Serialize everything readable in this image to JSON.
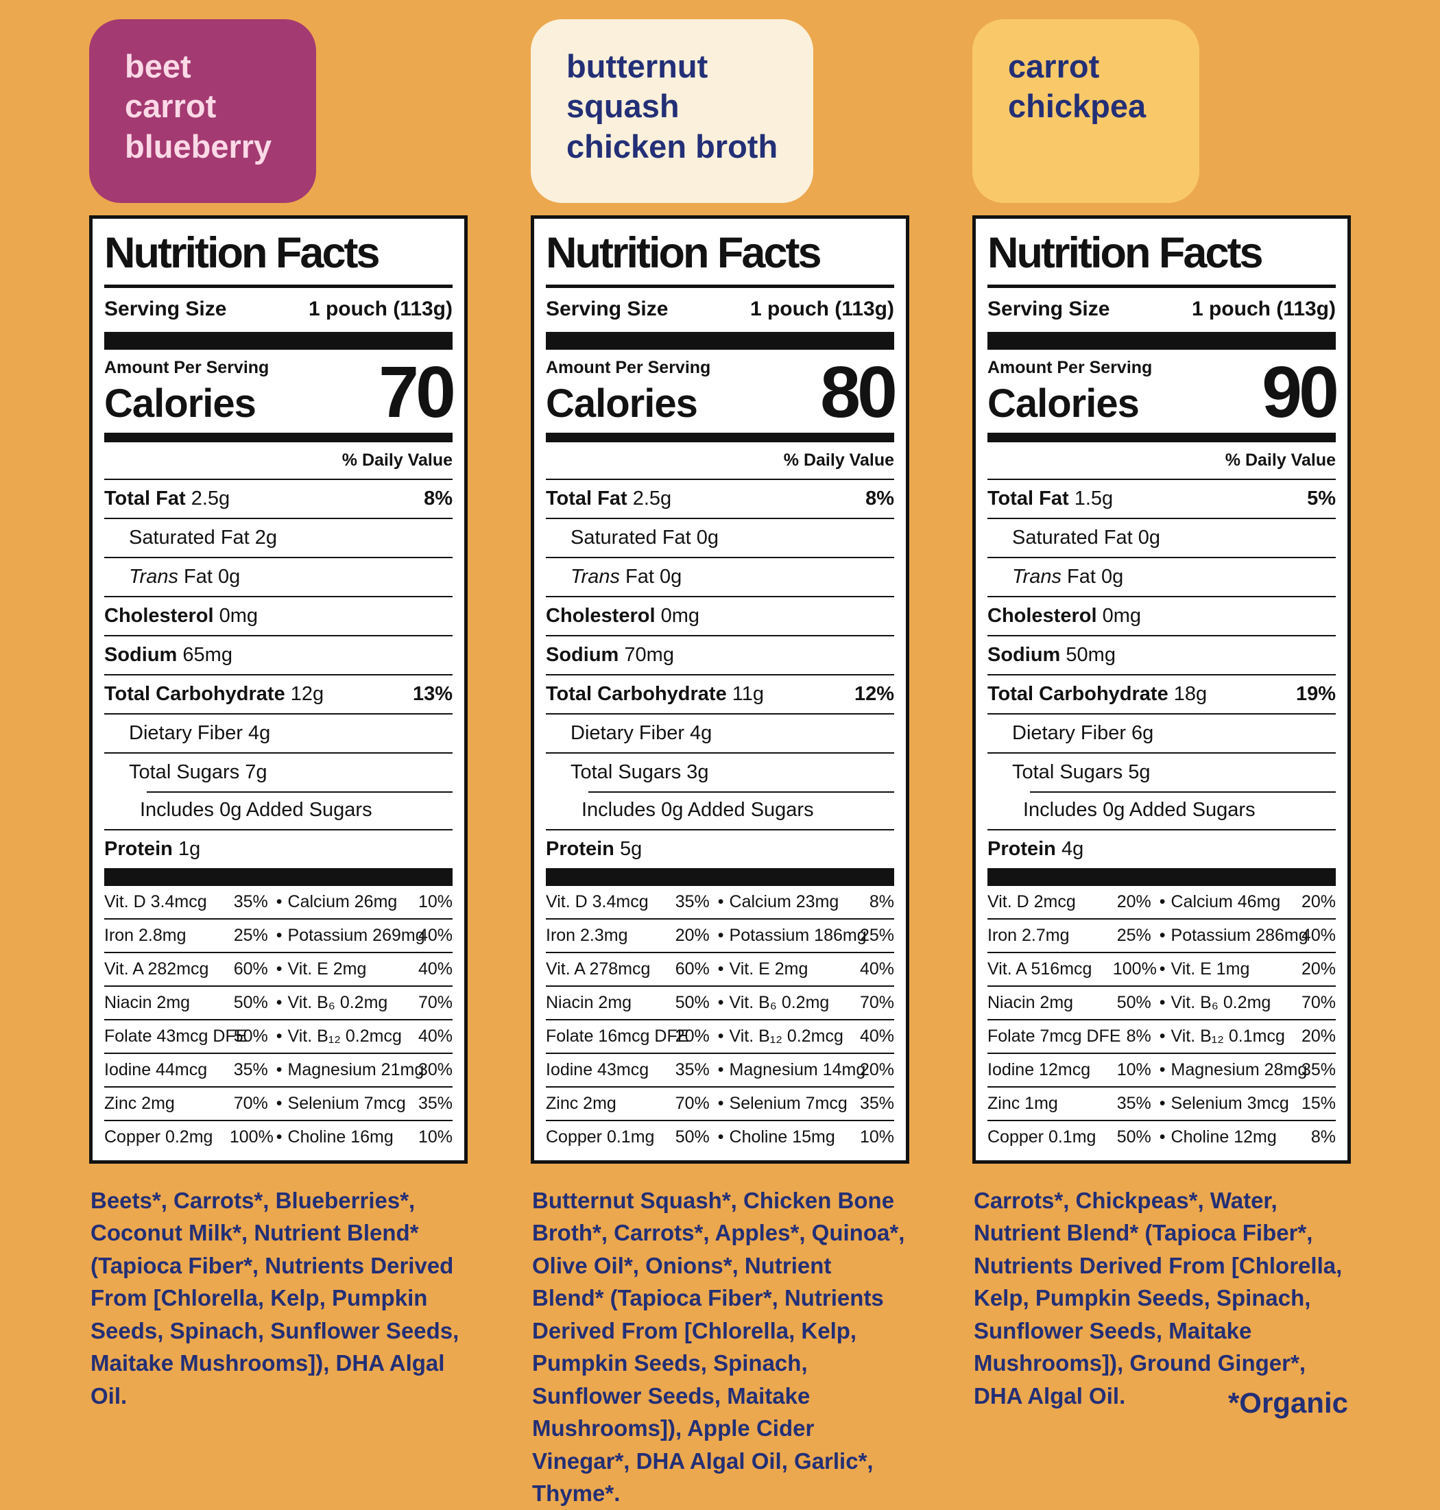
{
  "background_color": "#ECA84E",
  "bullet": "•",
  "footnote": "*Organic",
  "navy": "#232F76",
  "columns": [
    {
      "badge": {
        "lines": [
          "beet",
          "carrot",
          "blueberry"
        ],
        "bg": "#A43A72",
        "text": "#FBD9E7"
      },
      "panel": {
        "title": "Nutrition Facts",
        "serving_size_label": "Serving Size",
        "serving_size_value": "1 pouch (113g)",
        "amount_per_serving": "Amount Per Serving",
        "calories_label": "Calories",
        "calories_value": "70",
        "daily_value_header": "% Daily Value",
        "rows": [
          {
            "i": "",
            "b": "Total Fat",
            "r": " 2.5g",
            "dv": "8%"
          },
          {
            "i": "",
            "b": "",
            "r": "Saturated Fat 2g",
            "dv": ""
          },
          {
            "i": "Trans",
            "b": "",
            "r": " Fat 0g",
            "dv": ""
          },
          {
            "i": "",
            "b": "Cholesterol",
            "r": " 0mg",
            "dv": ""
          },
          {
            "i": "",
            "b": "Sodium",
            "r": " 65mg",
            "dv": ""
          },
          {
            "i": "",
            "b": "Total Carbohydrate",
            "r": " 12g",
            "dv": "13%"
          },
          {
            "i": "",
            "b": "",
            "r": "Dietary Fiber 4g",
            "dv": ""
          },
          {
            "i": "",
            "b": "",
            "r": "Total Sugars 7g",
            "dv": ""
          },
          {
            "i": "",
            "b": "",
            "r": "Includes 0g Added Sugars",
            "dv": ""
          },
          {
            "i": "",
            "b": "Protein",
            "r": " 1g",
            "dv": ""
          }
        ],
        "micronutrients": [
          {
            "l": "Vit. D 3.4mcg",
            "ldv": "35%",
            "r": "Calcium 26mg",
            "rdv": "10%"
          },
          {
            "l": "Iron 2.8mg",
            "ldv": "25%",
            "r": "Potassium 269mg",
            "rdv": "40%"
          },
          {
            "l": "Vit. A 282mcg",
            "ldv": "60%",
            "r": "Vit. E 2mg",
            "rdv": "40%"
          },
          {
            "l": "Niacin 2mg",
            "ldv": "50%",
            "r": "Vit. B₆ 0.2mg",
            "rdv": "70%"
          },
          {
            "l": "Folate 43mcg DFE",
            "ldv": "50%",
            "r": "Vit. B₁₂ 0.2mcg",
            "rdv": "40%"
          },
          {
            "l": "Iodine 44mcg",
            "ldv": "35%",
            "r": "Magnesium 21mg",
            "rdv": "30%"
          },
          {
            "l": "Zinc 2mg",
            "ldv": "70%",
            "r": "Selenium 7mcg",
            "rdv": "35%"
          },
          {
            "l": "Copper 0.2mg",
            "ldv": "100%",
            "r": "Choline 16mg",
            "rdv": "10%"
          }
        ]
      },
      "ingredients": "Beets*, Carrots*, Blueberries*, Coconut Milk*, Nutrient Blend* (Tapioca Fiber*, Nutrients Derived From [Chlorella, Kelp, Pumpkin Seeds, Spinach, Sunflower Seeds, Maitake Mushrooms]), DHA Algal Oil."
    },
    {
      "badge": {
        "lines": [
          "butternut",
          "squash",
          "chicken broth"
        ],
        "bg": "#FAF0DB",
        "text": "#232F76"
      },
      "panel": {
        "title": "Nutrition Facts",
        "serving_size_label": "Serving Size",
        "serving_size_value": "1 pouch (113g)",
        "amount_per_serving": "Amount Per Serving",
        "calories_label": "Calories",
        "calories_value": "80",
        "daily_value_header": "% Daily Value",
        "rows": [
          {
            "i": "",
            "b": "Total Fat",
            "r": " 2.5g",
            "dv": "8%"
          },
          {
            "i": "",
            "b": "",
            "r": "Saturated Fat 0g",
            "dv": ""
          },
          {
            "i": "Trans",
            "b": "",
            "r": " Fat 0g",
            "dv": ""
          },
          {
            "i": "",
            "b": "Cholesterol",
            "r": " 0mg",
            "dv": ""
          },
          {
            "i": "",
            "b": "Sodium",
            "r": " 70mg",
            "dv": ""
          },
          {
            "i": "",
            "b": "Total Carbohydrate",
            "r": " 11g",
            "dv": "12%"
          },
          {
            "i": "",
            "b": "",
            "r": "Dietary Fiber 4g",
            "dv": ""
          },
          {
            "i": "",
            "b": "",
            "r": "Total Sugars 3g",
            "dv": ""
          },
          {
            "i": "",
            "b": "",
            "r": "Includes 0g Added Sugars",
            "dv": ""
          },
          {
            "i": "",
            "b": "Protein",
            "r": " 5g",
            "dv": ""
          }
        ],
        "micronutrients": [
          {
            "l": "Vit. D 3.4mcg",
            "ldv": "35%",
            "r": "Calcium 23mg",
            "rdv": "8%"
          },
          {
            "l": "Iron 2.3mg",
            "ldv": "20%",
            "r": "Potassium 186mg",
            "rdv": "25%"
          },
          {
            "l": "Vit. A 278mcg",
            "ldv": "60%",
            "r": "Vit. E 2mg",
            "rdv": "40%"
          },
          {
            "l": "Niacin 2mg",
            "ldv": "50%",
            "r": "Vit. B₆ 0.2mg",
            "rdv": "70%"
          },
          {
            "l": "Folate 16mcg DFE",
            "ldv": "20%",
            "r": "Vit. B₁₂ 0.2mcg",
            "rdv": "40%"
          },
          {
            "l": "Iodine 43mcg",
            "ldv": "35%",
            "r": "Magnesium 14mg",
            "rdv": "20%"
          },
          {
            "l": "Zinc 2mg",
            "ldv": "70%",
            "r": "Selenium 7mcg",
            "rdv": "35%"
          },
          {
            "l": "Copper 0.1mg",
            "ldv": "50%",
            "r": "Choline 15mg",
            "rdv": "10%"
          }
        ]
      },
      "ingredients": "Butternut Squash*, Chicken Bone Broth*, Carrots*, Apples*, Quinoa*, Olive Oil*, Onions*, Nutrient Blend* (Tapioca Fiber*, Nutrients Derived From [Chlorella, Kelp, Pumpkin Seeds, Spinach, Sunflower Seeds, Maitake Mushrooms]), Apple Cider Vinegar*, DHA Algal Oil, Garlic*, Thyme*."
    },
    {
      "badge": {
        "lines": [
          "carrot",
          "chickpea"
        ],
        "bg": "#F9C869",
        "text": "#232F76"
      },
      "panel": {
        "title": "Nutrition Facts",
        "serving_size_label": "Serving Size",
        "serving_size_value": "1 pouch (113g)",
        "amount_per_serving": "Amount Per Serving",
        "calories_label": "Calories",
        "calories_value": "90",
        "daily_value_header": "% Daily Value",
        "rows": [
          {
            "i": "",
            "b": "Total Fat",
            "r": " 1.5g",
            "dv": "5%"
          },
          {
            "i": "",
            "b": "",
            "r": "Saturated Fat 0g",
            "dv": ""
          },
          {
            "i": "Trans",
            "b": "",
            "r": " Fat 0g",
            "dv": ""
          },
          {
            "i": "",
            "b": "Cholesterol",
            "r": " 0mg",
            "dv": ""
          },
          {
            "i": "",
            "b": "Sodium",
            "r": " 50mg",
            "dv": ""
          },
          {
            "i": "",
            "b": "Total Carbohydrate",
            "r": " 18g",
            "dv": "19%"
          },
          {
            "i": "",
            "b": "",
            "r": "Dietary Fiber 6g",
            "dv": ""
          },
          {
            "i": "",
            "b": "",
            "r": "Total Sugars 5g",
            "dv": ""
          },
          {
            "i": "",
            "b": "",
            "r": "Includes 0g Added Sugars",
            "dv": ""
          },
          {
            "i": "",
            "b": "Protein",
            "r": " 4g",
            "dv": ""
          }
        ],
        "micronutrients": [
          {
            "l": "Vit. D 2mcg",
            "ldv": "20%",
            "r": "Calcium 46mg",
            "rdv": "20%"
          },
          {
            "l": "Iron 2.7mg",
            "ldv": "25%",
            "r": "Potassium 286mg",
            "rdv": "40%"
          },
          {
            "l": "Vit. A 516mcg",
            "ldv": "100%",
            "r": "Vit. E 1mg",
            "rdv": "20%"
          },
          {
            "l": "Niacin 2mg",
            "ldv": "50%",
            "r": "Vit. B₆ 0.2mg",
            "rdv": "70%"
          },
          {
            "l": "Folate 7mcg DFE",
            "ldv": "8%",
            "r": "Vit. B₁₂ 0.1mcg",
            "rdv": "20%"
          },
          {
            "l": "Iodine 12mcg",
            "ldv": "10%",
            "r": "Magnesium 28mg",
            "rdv": "35%"
          },
          {
            "l": "Zinc 1mg",
            "ldv": "35%",
            "r": "Selenium 3mcg",
            "rdv": "15%"
          },
          {
            "l": "Copper 0.1mg",
            "ldv": "50%",
            "r": "Choline 12mg",
            "rdv": "8%"
          }
        ]
      },
      "ingredients": "Carrots*, Chickpeas*, Water, Nutrient Blend* (Tapioca Fiber*, Nutrients Derived From [Chlorella, Kelp, Pumpkin Seeds, Spinach, Sunflower Seeds, Maitake Mushrooms]), Ground Ginger*, DHA Algal Oil."
    }
  ]
}
